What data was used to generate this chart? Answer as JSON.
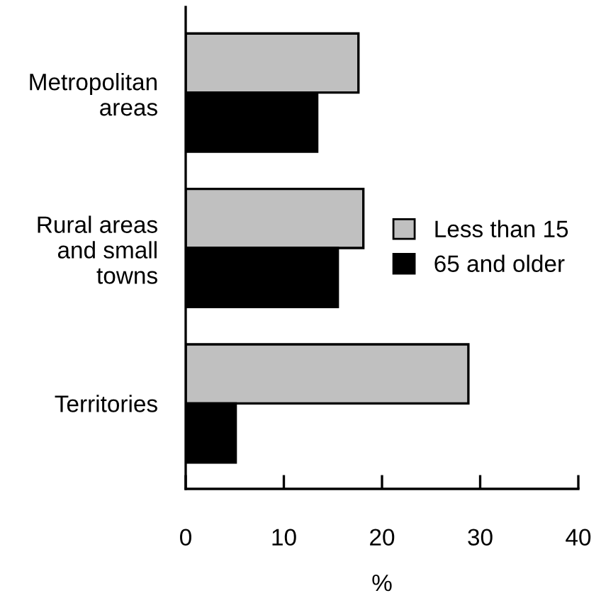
{
  "chart_data": {
    "type": "bar",
    "orientation": "horizontal",
    "xlabel": "%",
    "categories": [
      "Metropolitan\nareas",
      "Rural areas\nand small\ntowns",
      "Territories"
    ],
    "series": [
      {
        "name": "Less than 15",
        "color": "#c0c0c0",
        "values": [
          17.6,
          18.1,
          28.8
        ]
      },
      {
        "name": "65 and older",
        "color": "#000000",
        "values": [
          13.4,
          15.5,
          5.1
        ]
      }
    ],
    "xlim": [
      0,
      40
    ],
    "xticks": [
      0,
      10,
      20,
      30,
      40
    ],
    "grid": false,
    "legend": "right"
  }
}
